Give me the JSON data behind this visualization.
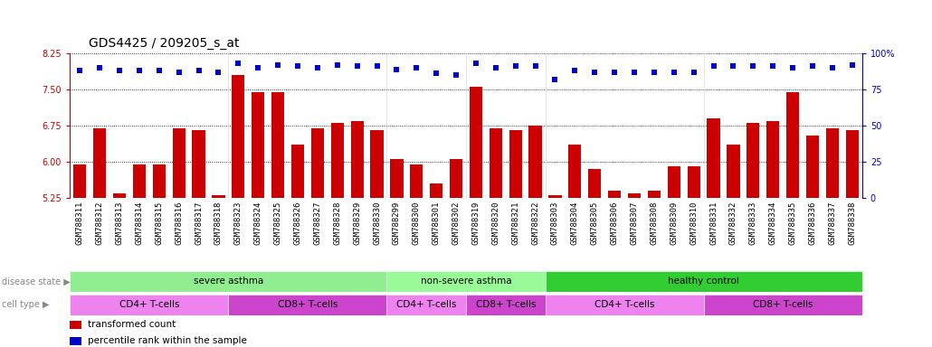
{
  "title": "GDS4425 / 209205_s_at",
  "samples": [
    "GSM788311",
    "GSM788312",
    "GSM788313",
    "GSM788314",
    "GSM788315",
    "GSM788316",
    "GSM788317",
    "GSM788318",
    "GSM788323",
    "GSM788324",
    "GSM788325",
    "GSM788326",
    "GSM788327",
    "GSM788328",
    "GSM788329",
    "GSM788330",
    "GSM788299",
    "GSM788300",
    "GSM788301",
    "GSM788302",
    "GSM788319",
    "GSM788320",
    "GSM788321",
    "GSM788322",
    "GSM788303",
    "GSM788304",
    "GSM788305",
    "GSM788306",
    "GSM788307",
    "GSM788308",
    "GSM788309",
    "GSM788310",
    "GSM788331",
    "GSM788332",
    "GSM788333",
    "GSM788334",
    "GSM788335",
    "GSM788336",
    "GSM788337",
    "GSM788338"
  ],
  "bar_values": [
    5.95,
    6.7,
    5.35,
    5.95,
    5.95,
    6.7,
    6.65,
    5.3,
    7.8,
    7.45,
    7.45,
    6.35,
    6.7,
    6.8,
    6.85,
    6.65,
    6.05,
    5.95,
    5.55,
    6.05,
    7.55,
    6.7,
    6.65,
    6.75,
    5.3,
    6.35,
    5.85,
    5.4,
    5.35,
    5.4,
    5.9,
    5.9,
    6.9,
    6.35,
    6.8,
    6.85,
    7.45,
    6.55,
    6.7,
    6.65
  ],
  "percentile_values": [
    88,
    90,
    88,
    88,
    88,
    87,
    88,
    87,
    93,
    90,
    92,
    91,
    90,
    92,
    91,
    91,
    89,
    90,
    86,
    85,
    93,
    90,
    91,
    91,
    82,
    88,
    87,
    87,
    87,
    87,
    87,
    87,
    91,
    91,
    91,
    91,
    90,
    91,
    90,
    92
  ],
  "ylim_left": [
    5.25,
    8.25
  ],
  "ylim_right": [
    0,
    100
  ],
  "yticks_left": [
    5.25,
    6.0,
    6.75,
    7.5,
    8.25
  ],
  "yticks_right": [
    0,
    25,
    50,
    75,
    100
  ],
  "bar_color": "#cc0000",
  "dot_color": "#0000cc",
  "plot_bg_color": "#ffffff",
  "fig_bg_color": "#ffffff",
  "xtick_bg_color": "#d3d3d3",
  "disease_state_groups": [
    {
      "label": "severe asthma",
      "start": 0,
      "end": 15,
      "color": "#90ee90"
    },
    {
      "label": "non-severe asthma",
      "start": 16,
      "end": 23,
      "color": "#98fb98"
    },
    {
      "label": "healthy control",
      "start": 24,
      "end": 39,
      "color": "#32cd32"
    }
  ],
  "cell_type_groups": [
    {
      "label": "CD4+ T-cells",
      "start": 0,
      "end": 7,
      "color": "#ee82ee"
    },
    {
      "label": "CD8+ T-cells",
      "start": 8,
      "end": 15,
      "color": "#cc44cc"
    },
    {
      "label": "CD4+ T-cells",
      "start": 16,
      "end": 19,
      "color": "#ee82ee"
    },
    {
      "label": "CD8+ T-cells",
      "start": 20,
      "end": 23,
      "color": "#cc44cc"
    },
    {
      "label": "CD4+ T-cells",
      "start": 24,
      "end": 31,
      "color": "#ee82ee"
    },
    {
      "label": "CD8+ T-cells",
      "start": 32,
      "end": 39,
      "color": "#cc44cc"
    }
  ],
  "legend_items": [
    {
      "label": "transformed count",
      "color": "#cc0000"
    },
    {
      "label": "percentile rank within the sample",
      "color": "#0000cc"
    }
  ],
  "title_fontsize": 10,
  "tick_fontsize": 7,
  "label_fontsize": 7,
  "annot_fontsize": 7.5
}
